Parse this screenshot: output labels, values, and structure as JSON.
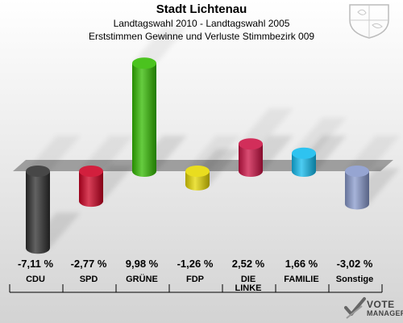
{
  "header": {
    "title": "Stadt Lichtenau",
    "subtitle": "Landtagswahl 2010 - Landtagswahl 2005",
    "subtitle2": "Erststimmen Gewinne und Verluste Stimmbezirk 009"
  },
  "branding": {
    "line1": "VOTE",
    "line2": "MANAGER"
  },
  "chart_data": {
    "type": "bar",
    "title": "Stadt Lichtenau",
    "subtitle": "Landtagswahl 2010 - Landtagswahl 2005 / Erststimmen Gewinne und Verluste Stimmbezirk 009",
    "unit": "%",
    "ylim": [
      -8,
      11
    ],
    "baseline": 0,
    "grid": false,
    "categories": [
      "CDU",
      "SPD",
      "GRÜNE",
      "FDP",
      "DIE LINKE",
      "FAMILIE",
      "Sonstige"
    ],
    "values": [
      -7.11,
      -2.77,
      9.98,
      -1.26,
      2.52,
      1.66,
      -3.02
    ],
    "value_labels": [
      "-7,11 %",
      "-2,77 %",
      "9,98 %",
      "-1,26 %",
      "2,52 %",
      "1,66 %",
      "-3,02 %"
    ],
    "colors": [
      "#2e2e2e",
      "#cc0022",
      "#33bb00",
      "#e6d800",
      "#cc1144",
      "#11bbee",
      "#8899cc"
    ]
  }
}
